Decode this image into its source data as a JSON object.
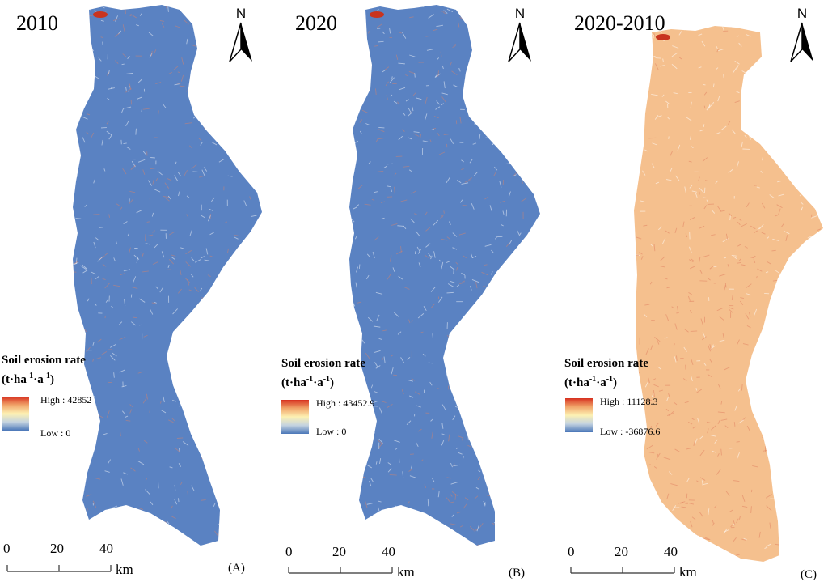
{
  "panels": [
    {
      "title": "2010",
      "north": "N",
      "legend": {
        "title": "Soil erosion rate",
        "unit_main": "(t·ha",
        "unit_sup1": "-1",
        "unit_mid": "·a",
        "unit_sup2": "-1",
        "unit_end": ")",
        "high": "High : 42852",
        "low": "Low : 0"
      },
      "scale": {
        "ticks": [
          "0",
          "20",
          "40"
        ],
        "unit": "km"
      },
      "label": "(A)",
      "colors": {
        "base": "#5a82c2",
        "accent": "#d9826a"
      }
    },
    {
      "title": "2020",
      "north": "N",
      "legend": {
        "title": "Soil erosion rate",
        "unit_main": "(t·ha",
        "unit_sup1": "-1",
        "unit_mid": "·a",
        "unit_sup2": "-1",
        "unit_end": ")",
        "high": "High : 43452.9",
        "low": "Low : 0"
      },
      "scale": {
        "ticks": [
          "0",
          "20",
          "40"
        ],
        "unit": "km"
      },
      "label": "(B)",
      "colors": {
        "base": "#5a82c2",
        "accent": "#d9826a"
      }
    },
    {
      "title": "2020-2010",
      "north": "N",
      "legend": {
        "title": "Soil erosion rate",
        "unit_main": "(t·ha",
        "unit_sup1": "-1",
        "unit_mid": "·a",
        "unit_sup2": "-1",
        "unit_end": ")",
        "high": "High : 11128.3",
        "low": "Low : -36876.6"
      },
      "scale": {
        "ticks": [
          "0",
          "20",
          "40"
        ],
        "unit": "km"
      },
      "label": "(C)",
      "colors": {
        "base": "#f5c08e",
        "accent": "#e08062"
      }
    }
  ],
  "ramp_colors": [
    "#d7301f",
    "#f1a56a",
    "#fdf1b3",
    "#c4d3e0",
    "#4a77b8"
  ]
}
